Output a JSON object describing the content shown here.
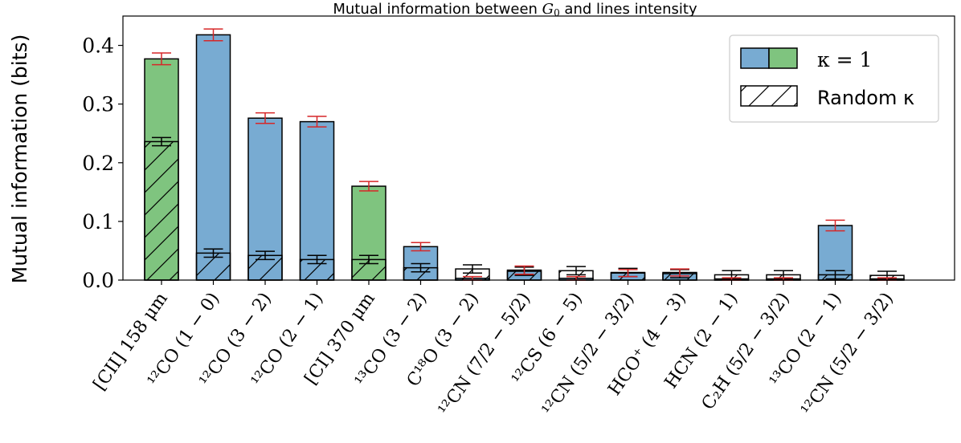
{
  "chart_data": {
    "type": "bar",
    "title": "Mutual information between G₀ and lines intensity",
    "ylabel": "Mutual information (bits)",
    "xlabel": "",
    "ylim": [
      0,
      0.45
    ],
    "yticks": [
      0.0,
      0.1,
      0.2,
      0.3,
      0.4
    ],
    "ytick_labels": [
      "0.0",
      "0.1",
      "0.2",
      "0.3",
      "0.4"
    ],
    "grid": false,
    "legend_position": "top-right",
    "legend": [
      {
        "label": "κ = 1",
        "style": "solid-blue-green"
      },
      {
        "label": "Random κ",
        "style": "hatched"
      }
    ],
    "colors": {
      "green": "#7fc47f",
      "blue": "#78abd2",
      "error_kappa1": "#d62728",
      "error_random": "#000000"
    },
    "categories": [
      "[CII] 158 μm",
      "¹²CO (1 − 0)",
      "¹²CO (3 − 2)",
      "¹²CO (2 − 1)",
      "[CI] 370 μm",
      "¹³CO (3 − 2)",
      "C¹⁸O (3 − 2)",
      "¹²CN (7/2 − 5/2)",
      "¹²CS (6 − 5)",
      "¹²CN (5/2 − 3/2)",
      "HCO⁺ (4 − 3)",
      "HCN (2 − 1)",
      "C₂H (5/2 − 3/2)",
      "¹³CO (2 − 1)",
      "¹²CN (5/2 − 3/2)"
    ],
    "bar_colors": [
      "green",
      "blue",
      "blue",
      "blue",
      "green",
      "blue",
      "blue",
      "blue",
      "blue",
      "blue",
      "blue",
      "blue",
      "blue",
      "blue",
      "blue"
    ],
    "series": [
      {
        "name": "κ = 1",
        "values": [
          0.377,
          0.418,
          0.276,
          0.27,
          0.16,
          0.057,
          0.003,
          0.017,
          0.003,
          0.012,
          0.013,
          0.002,
          0.002,
          0.093,
          0.002
        ],
        "errors": [
          0.01,
          0.01,
          0.009,
          0.009,
          0.008,
          0.007,
          0.003,
          0.007,
          0.003,
          0.006,
          0.006,
          0.002,
          0.002,
          0.009,
          0.002
        ]
      },
      {
        "name": "Random κ",
        "values": [
          0.236,
          0.046,
          0.042,
          0.035,
          0.035,
          0.021,
          0.019,
          0.015,
          0.016,
          0.013,
          0.011,
          0.009,
          0.009,
          0.009,
          0.008
        ],
        "errors": [
          0.007,
          0.007,
          0.007,
          0.007,
          0.007,
          0.007,
          0.007,
          0.007,
          0.007,
          0.007,
          0.007,
          0.007,
          0.007,
          0.007,
          0.007
        ]
      }
    ]
  }
}
